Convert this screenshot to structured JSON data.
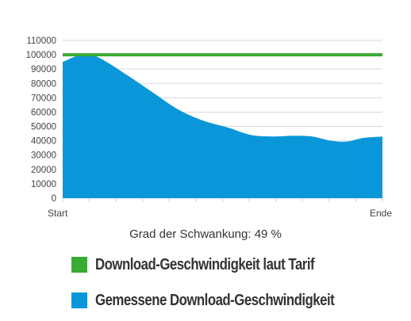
{
  "chart_data": {
    "type": "area",
    "y_ticks": [
      0,
      10000,
      20000,
      30000,
      40000,
      50000,
      60000,
      70000,
      80000,
      90000,
      100000,
      110000
    ],
    "ylim": [
      0,
      110000
    ],
    "x_labels": {
      "start": "Start",
      "end": "Ende"
    },
    "grid": true,
    "series": [
      {
        "name": "Download-Geschwindigkeit laut Tarif",
        "type": "line",
        "color": "#3aaa35",
        "x": [
          0,
          1
        ],
        "values": [
          100000,
          100000
        ]
      },
      {
        "name": "Gemessene Download-Geschwindigkeit",
        "type": "area",
        "color": "#0a97d9",
        "x": [
          0,
          0.05,
          0.09,
          0.13,
          0.2,
          0.28,
          0.36,
          0.44,
          0.52,
          0.59,
          0.66,
          0.72,
          0.78,
          0.84,
          0.89,
          0.94,
          1.0
        ],
        "values": [
          95000,
          99500,
          99800,
          96000,
          86000,
          74000,
          62000,
          54000,
          49000,
          44000,
          43000,
          43500,
          43000,
          40000,
          39500,
          42000,
          43000
        ]
      }
    ]
  },
  "caption": "Grad der Schwankung: 49 %",
  "legend": [
    {
      "label": "Download-Geschwindigkeit laut Tarif",
      "color": "#3aaa35"
    },
    {
      "label": "Gemessene Download-Geschwindigkeit",
      "color": "#0a97d9"
    }
  ]
}
